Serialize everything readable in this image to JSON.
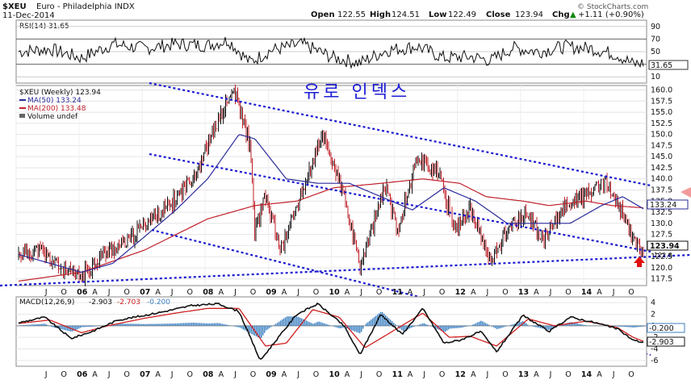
{
  "header": {
    "symbol": "$XEU",
    "name": "Euro - Philadelphia INDX",
    "date": "11-Dec-2014",
    "open_label": "Open",
    "open": "122.55",
    "high_label": "High",
    "high": "124.51",
    "low_label": "Low",
    "low": "122.49",
    "close_label": "Close",
    "close": "123.94",
    "chg_label": "Chg",
    "chg": "+1.11 (+0.90%)",
    "chg_arrow": "▲",
    "watermark": "© StockCharts.com"
  },
  "annotation": {
    "korean_title": "유로 인덱스"
  },
  "colors": {
    "price": "#111111",
    "ma50": "#2b2b9a",
    "ma200": "#c0202a",
    "trend": "#1a1ad0",
    "macd": "#111111",
    "signal": "#d02020",
    "histogram": "#3a7fc1",
    "arrow": "#e01010",
    "arrow_right": "#f08080"
  },
  "chart_data": [
    {
      "type": "line",
      "panel": "RSI",
      "legend": "RSI(14) 31.65",
      "value_tag": "31.65",
      "yticks": [
        90,
        70,
        50,
        30,
        10
      ],
      "ylim": [
        0,
        100
      ],
      "reference_lines": [
        70,
        30
      ],
      "x": [
        "2005-01",
        "2005-07",
        "2006-01",
        "2006-07",
        "2007-01",
        "2007-07",
        "2008-01",
        "2008-05",
        "2008-09",
        "2009-01",
        "2009-07",
        "2010-01",
        "2010-06",
        "2010-11",
        "2011-05",
        "2011-10",
        "2012-03",
        "2012-07",
        "2012-11",
        "2013-04",
        "2013-09",
        "2014-02",
        "2014-07",
        "2014-10",
        "2014-12"
      ],
      "values": [
        50,
        54,
        40,
        62,
        55,
        62,
        60,
        68,
        33,
        52,
        62,
        40,
        32,
        52,
        58,
        40,
        42,
        36,
        56,
        50,
        58,
        55,
        45,
        30,
        32
      ]
    },
    {
      "type": "line",
      "panel": "Price",
      "title": "$XEU (Weekly) 123.94",
      "series": [
        {
          "name": "MA(50) 133.24",
          "value_tag": "133.24",
          "x": [
            "2005-01",
            "2006-01",
            "2006-07",
            "2007-01",
            "2007-07",
            "2008-01",
            "2008-07",
            "2008-10",
            "2009-04",
            "2009-10",
            "2010-04",
            "2010-10",
            "2011-04",
            "2011-10",
            "2012-04",
            "2012-10",
            "2013-04",
            "2013-10",
            "2014-04",
            "2014-08",
            "2014-12"
          ],
          "values": [
            123,
            119,
            121,
            127,
            133,
            140,
            150,
            149,
            140,
            139,
            139,
            136,
            133,
            138,
            135,
            130,
            130,
            130,
            134,
            136,
            133.24
          ]
        },
        {
          "name": "MA(200) 133.48",
          "value_tag": "133.48",
          "x": [
            "2005-01",
            "2006-01",
            "2007-01",
            "2008-01",
            "2008-10",
            "2009-06",
            "2010-01",
            "2010-10",
            "2011-06",
            "2012-01",
            "2012-06",
            "2013-01",
            "2013-06",
            "2014-01",
            "2014-06",
            "2014-12"
          ],
          "values": [
            117,
            119,
            124,
            131,
            134,
            135,
            138,
            139,
            140,
            139,
            136,
            135,
            134,
            135,
            134,
            133.48
          ]
        },
        {
          "name": "Volume undef"
        },
        {
          "name": "$XEU (Weekly)",
          "value_tag": "123.94",
          "x": [
            "2005-01",
            "2005-05",
            "2005-10",
            "2006-01",
            "2006-05",
            "2006-10",
            "2007-01",
            "2007-06",
            "2007-11",
            "2008-03",
            "2008-06",
            "2008-09",
            "2008-10",
            "2008-12",
            "2009-03",
            "2009-07",
            "2009-11",
            "2010-03",
            "2010-06",
            "2010-11",
            "2011-01",
            "2011-05",
            "2011-09",
            "2011-12",
            "2012-03",
            "2012-07",
            "2012-10",
            "2013-02",
            "2013-05",
            "2013-09",
            "2014-02",
            "2014-05",
            "2014-08",
            "2014-10",
            "2014-12"
          ],
          "values": [
            123,
            124,
            119,
            118,
            123,
            126,
            130,
            134,
            142,
            153,
            160,
            148,
            128,
            136,
            124,
            137,
            150,
            136,
            120,
            139,
            128,
            145,
            141,
            129,
            133,
            121,
            129,
            132,
            126,
            134,
            137,
            139,
            132,
            126,
            123.94
          ]
        }
      ],
      "extra_tag": "122.6",
      "yticks": [
        160.0,
        157.5,
        155.0,
        152.5,
        150.0,
        147.5,
        145.0,
        142.5,
        140.0,
        137.5,
        135.0,
        132.5,
        130.0,
        127.5,
        125.0,
        122.5,
        120.0,
        117.5
      ],
      "ylim": [
        116,
        161
      ],
      "trendlines": "blue dotted downward channel (upper, middle, lower) and rising support line",
      "markers": [
        "red up arrow near latest bar",
        "faded red arrow at right edge"
      ]
    },
    {
      "type": "line",
      "panel": "MACD",
      "legend": {
        "prefix": "MACD(12,26,9)",
        "macd": "-2.903",
        "signal": "-2.703",
        "hist": "-0.200"
      },
      "value_tags": [
        "-0.200",
        "-2.903"
      ],
      "yticks": [
        "4",
        "2",
        "0",
        "-2",
        "-4",
        "-6"
      ],
      "ylim": [
        -7,
        5
      ],
      "series": [
        {
          "name": "MACD",
          "x": [
            "2005-01",
            "2005-06",
            "2005-11",
            "2006-03",
            "2006-08",
            "2007-01",
            "2007-05",
            "2007-10",
            "2008-03",
            "2008-07",
            "2008-11",
            "2009-02",
            "2009-06",
            "2009-10",
            "2010-03",
            "2010-06",
            "2010-10",
            "2011-02",
            "2011-06",
            "2011-10",
            "2012-01",
            "2012-05",
            "2012-08",
            "2013-01",
            "2013-06",
            "2013-10",
            "2014-03",
            "2014-07",
            "2014-10",
            "2014-12"
          ],
          "values": [
            0.5,
            1.5,
            -2.2,
            -1.0,
            1.0,
            1.8,
            2.5,
            3.5,
            3.8,
            2.5,
            -6.0,
            -2.5,
            2.0,
            3.8,
            0.0,
            -5.0,
            2.0,
            -1.5,
            3.0,
            -3.0,
            -2.5,
            -1.0,
            -4.5,
            1.8,
            -1.0,
            1.5,
            0.5,
            -0.5,
            -2.5,
            -2.9
          ]
        },
        {
          "name": "Signal",
          "x": [
            "2005-01",
            "2005-07",
            "2006-01",
            "2006-06",
            "2007-01",
            "2007-07",
            "2008-01",
            "2008-07",
            "2008-12",
            "2009-04",
            "2009-09",
            "2010-02",
            "2010-07",
            "2011-01",
            "2011-06",
            "2011-11",
            "2012-03",
            "2012-08",
            "2013-02",
            "2013-07",
            "2014-01",
            "2014-07",
            "2014-10",
            "2014-12"
          ],
          "values": [
            0.4,
            1.0,
            -1.2,
            0.0,
            1.3,
            2.2,
            3.0,
            3.0,
            -3.5,
            -3.0,
            2.8,
            1.5,
            -3.8,
            -0.5,
            2.2,
            -2.0,
            -1.8,
            -3.5,
            1.2,
            0.0,
            0.8,
            -0.3,
            -2.0,
            -2.7
          ]
        }
      ]
    }
  ],
  "x_axis": {
    "labels": [
      "J",
      "O",
      "06",
      "A",
      "J",
      "O",
      "07",
      "A",
      "J",
      "O",
      "08",
      "A",
      "J",
      "O",
      "09",
      "A",
      "J",
      "O",
      "10",
      "A",
      "J",
      "O",
      "11",
      "A",
      "J",
      "O",
      "12",
      "A",
      "J",
      "O",
      "13",
      "A",
      "J",
      "O",
      "14",
      "A",
      "J",
      "O"
    ]
  }
}
